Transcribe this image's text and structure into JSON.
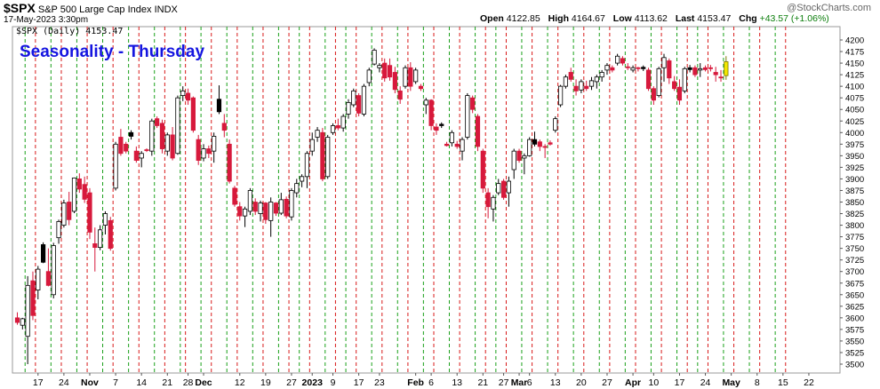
{
  "header": {
    "symbol": "$SPX",
    "description": "S&P 500 Large Cap Index",
    "exchange": "INDX",
    "date_time": "17-May-2023 3:30pm",
    "open_label": "Open",
    "open_value": "4122.85",
    "high_label": "High",
    "high_value": "4164.67",
    "low_label": "Low",
    "low_value": "4113.62",
    "last_label": "Last",
    "last_value": "4153.47",
    "chg_label": "Chg",
    "chg_value": "+43.57 (+1.06%)",
    "brand": "@StockCharts.com"
  },
  "chart_data": {
    "type": "candlestick",
    "title": "Seasonality - Thursday",
    "legend": "$SPX (Daily) 4153.47",
    "legend_placement": "top-left",
    "ylim": [
      3500,
      4200
    ],
    "y_axis_side": "right",
    "yticks": [
      3500,
      3525,
      3550,
      3575,
      3600,
      3625,
      3650,
      3675,
      3700,
      3725,
      3750,
      3775,
      3800,
      3825,
      3850,
      3875,
      3900,
      3925,
      3950,
      3975,
      4000,
      4025,
      4050,
      4075,
      4100,
      4125,
      4150,
      4175,
      4200
    ],
    "x_ticks": [
      {
        "label": "17",
        "i": 4
      },
      {
        "label": "24",
        "i": 9
      },
      {
        "label": "Nov",
        "i": 14,
        "bold": true
      },
      {
        "label": "7",
        "i": 19
      },
      {
        "label": "14",
        "i": 24
      },
      {
        "label": "21",
        "i": 29
      },
      {
        "label": "28",
        "i": 33
      },
      {
        "label": "Dec",
        "i": 36,
        "bold": true
      },
      {
        "label": "12",
        "i": 43
      },
      {
        "label": "19",
        "i": 48
      },
      {
        "label": "27",
        "i": 53
      },
      {
        "label": "2023",
        "i": 57,
        "bold": true
      },
      {
        "label": "9",
        "i": 61
      },
      {
        "label": "17",
        "i": 66
      },
      {
        "label": "23",
        "i": 70
      },
      {
        "label": "Feb",
        "i": 77,
        "bold": true
      },
      {
        "label": "6",
        "i": 80
      },
      {
        "label": "13",
        "i": 85
      },
      {
        "label": "21",
        "i": 90
      },
      {
        "label": "27",
        "i": 94
      },
      {
        "label": "Mar",
        "i": 97,
        "bold": true
      },
      {
        "label": "6",
        "i": 99
      },
      {
        "label": "13",
        "i": 104
      },
      {
        "label": "20",
        "i": 109
      },
      {
        "label": "27",
        "i": 114
      },
      {
        "label": "Apr",
        "i": 119,
        "bold": true
      },
      {
        "label": "10",
        "i": 123
      },
      {
        "label": "17",
        "i": 128
      },
      {
        "label": "24",
        "i": 133
      },
      {
        "label": "May",
        "i": 138,
        "bold": true
      },
      {
        "label": "8",
        "i": 143
      },
      {
        "label": "15",
        "i": 148
      },
      {
        "label": "22",
        "i": 153
      }
    ],
    "vertical_markers": {
      "green_dashed_index": [
        1,
        6,
        11,
        16,
        21,
        26,
        31,
        35,
        40,
        45,
        50,
        54,
        59,
        63,
        68,
        73,
        78,
        83,
        88,
        92,
        97,
        102,
        107,
        112,
        117,
        122,
        127,
        131,
        136,
        141,
        146
      ],
      "red_dashed_index": [
        3,
        8,
        13,
        18,
        23,
        28,
        32,
        37,
        42,
        47,
        52,
        56,
        61,
        65,
        70,
        75,
        80,
        85,
        90,
        94,
        99,
        104,
        109,
        114,
        119,
        124,
        129,
        133,
        138,
        143,
        148
      ]
    },
    "colors": {
      "up": "#ffffff",
      "down": "#d7193c",
      "up_dark": "#000000",
      "last": "#f2e600",
      "title": "#1515e0",
      "green_line": "#1aa01a",
      "red_line": "#d81a1a"
    },
    "candles": [
      {
        "o": 3600,
        "h": 3612,
        "l": 3585,
        "c": 3590,
        "d": "red"
      },
      {
        "o": 3584,
        "h": 3600,
        "l": 3575,
        "c": 3598,
        "d": "up"
      },
      {
        "o": 3560,
        "h": 3690,
        "l": 3500,
        "c": 3670,
        "d": "up"
      },
      {
        "o": 3680,
        "h": 3700,
        "l": 3595,
        "c": 3605,
        "d": "red"
      },
      {
        "o": 3660,
        "h": 3712,
        "l": 3640,
        "c": 3705,
        "d": "up"
      },
      {
        "o": 3720,
        "h": 3763,
        "l": 3718,
        "c": 3758,
        "d": "dark"
      },
      {
        "o": 3700,
        "h": 3750,
        "l": 3668,
        "c": 3670,
        "d": "red"
      },
      {
        "o": 3650,
        "h": 3762,
        "l": 3642,
        "c": 3756,
        "d": "up"
      },
      {
        "o": 3773,
        "h": 3812,
        "l": 3760,
        "c": 3808,
        "d": "up"
      },
      {
        "o": 3800,
        "h": 3855,
        "l": 3795,
        "c": 3848,
        "d": "up"
      },
      {
        "o": 3850,
        "h": 3872,
        "l": 3800,
        "c": 3812,
        "d": "red"
      },
      {
        "o": 3830,
        "h": 3903,
        "l": 3826,
        "c": 3902,
        "d": "up"
      },
      {
        "o": 3900,
        "h": 3912,
        "l": 3870,
        "c": 3878,
        "d": "red"
      },
      {
        "o": 3888,
        "h": 3905,
        "l": 3848,
        "c": 3856,
        "d": "red"
      },
      {
        "o": 3870,
        "h": 3880,
        "l": 3770,
        "c": 3785,
        "d": "red"
      },
      {
        "o": 3760,
        "h": 3795,
        "l": 3700,
        "c": 3752,
        "d": "red"
      },
      {
        "o": 3752,
        "h": 3800,
        "l": 3746,
        "c": 3790,
        "d": "up"
      },
      {
        "o": 3800,
        "h": 3830,
        "l": 3780,
        "c": 3825,
        "d": "up"
      },
      {
        "o": 3810,
        "h": 3818,
        "l": 3745,
        "c": 3750,
        "d": "red"
      },
      {
        "o": 3880,
        "h": 3980,
        "l": 3875,
        "c": 3975,
        "d": "up"
      },
      {
        "o": 3990,
        "h": 4008,
        "l": 3950,
        "c": 3955,
        "d": "red"
      },
      {
        "o": 3960,
        "h": 3980,
        "l": 3955,
        "c": 3975,
        "d": "red"
      },
      {
        "o": 3992,
        "h": 4005,
        "l": 3985,
        "c": 4000,
        "d": "dark"
      },
      {
        "o": 3960,
        "h": 3970,
        "l": 3935,
        "c": 3940,
        "d": "red"
      },
      {
        "o": 3945,
        "h": 3960,
        "l": 3925,
        "c": 3955,
        "d": "up"
      },
      {
        "o": 3963,
        "h": 3966,
        "l": 3958,
        "c": 3962,
        "d": "red"
      },
      {
        "o": 3960,
        "h": 4030,
        "l": 3950,
        "c": 4025,
        "d": "up"
      },
      {
        "o": 4030,
        "h": 4035,
        "l": 4010,
        "c": 4015,
        "d": "red"
      },
      {
        "o": 4020,
        "h": 4028,
        "l": 3955,
        "c": 3965,
        "d": "red"
      },
      {
        "o": 3960,
        "h": 4000,
        "l": 3950,
        "c": 3995,
        "d": "up"
      },
      {
        "o": 3995,
        "h": 4012,
        "l": 3940,
        "c": 3945,
        "d": "red"
      },
      {
        "o": 3955,
        "h": 4080,
        "l": 3952,
        "c": 4075,
        "d": "up"
      },
      {
        "o": 4080,
        "h": 4100,
        "l": 4068,
        "c": 4090,
        "d": "up"
      },
      {
        "o": 4085,
        "h": 4095,
        "l": 4060,
        "c": 4070,
        "d": "red"
      },
      {
        "o": 4075,
        "h": 4078,
        "l": 4000,
        "c": 4005,
        "d": "red"
      },
      {
        "o": 3985,
        "h": 3995,
        "l": 3930,
        "c": 3940,
        "d": "red"
      },
      {
        "o": 3945,
        "h": 3975,
        "l": 3938,
        "c": 3965,
        "d": "up"
      },
      {
        "o": 3965,
        "h": 3972,
        "l": 3945,
        "c": 3955,
        "d": "red"
      },
      {
        "o": 3960,
        "h": 4000,
        "l": 3935,
        "c": 3992,
        "d": "up"
      },
      {
        "o": 4045,
        "h": 4102,
        "l": 4040,
        "c": 4072,
        "d": "dark"
      },
      {
        "o": 4020,
        "h": 4040,
        "l": 3990,
        "c": 4005,
        "d": "red"
      },
      {
        "o": 3975,
        "h": 3985,
        "l": 3890,
        "c": 3895,
        "d": "red"
      },
      {
        "o": 3880,
        "h": 3885,
        "l": 3840,
        "c": 3845,
        "d": "red"
      },
      {
        "o": 3840,
        "h": 3850,
        "l": 3810,
        "c": 3820,
        "d": "red"
      },
      {
        "o": 3820,
        "h": 3840,
        "l": 3796,
        "c": 3835,
        "d": "up"
      },
      {
        "o": 3830,
        "h": 3880,
        "l": 3822,
        "c": 3875,
        "d": "up"
      },
      {
        "o": 3850,
        "h": 3858,
        "l": 3822,
        "c": 3830,
        "d": "red"
      },
      {
        "o": 3825,
        "h": 3853,
        "l": 3808,
        "c": 3848,
        "d": "up"
      },
      {
        "o": 3848,
        "h": 3850,
        "l": 3803,
        "c": 3812,
        "d": "red"
      },
      {
        "o": 3810,
        "h": 3860,
        "l": 3775,
        "c": 3850,
        "d": "up"
      },
      {
        "o": 3848,
        "h": 3850,
        "l": 3820,
        "c": 3826,
        "d": "red"
      },
      {
        "o": 3826,
        "h": 3870,
        "l": 3822,
        "c": 3855,
        "d": "up"
      },
      {
        "o": 3856,
        "h": 3862,
        "l": 3815,
        "c": 3820,
        "d": "red"
      },
      {
        "o": 3818,
        "h": 3880,
        "l": 3810,
        "c": 3875,
        "d": "up"
      },
      {
        "o": 3870,
        "h": 3900,
        "l": 3860,
        "c": 3890,
        "d": "up"
      },
      {
        "o": 3895,
        "h": 3910,
        "l": 3882,
        "c": 3905,
        "d": "up"
      },
      {
        "o": 3905,
        "h": 3960,
        "l": 3880,
        "c": 3955,
        "d": "up"
      },
      {
        "o": 3960,
        "h": 4000,
        "l": 3950,
        "c": 3985,
        "d": "up"
      },
      {
        "o": 3990,
        "h": 4012,
        "l": 3980,
        "c": 4005,
        "d": "up"
      },
      {
        "o": 4000,
        "h": 4010,
        "l": 3895,
        "c": 3900,
        "d": "red"
      },
      {
        "o": 3905,
        "h": 3995,
        "l": 3900,
        "c": 3990,
        "d": "up"
      },
      {
        "o": 4000,
        "h": 4020,
        "l": 3995,
        "c": 4015,
        "d": "up"
      },
      {
        "o": 4015,
        "h": 4030,
        "l": 4005,
        "c": 4010,
        "d": "red"
      },
      {
        "o": 4010,
        "h": 4040,
        "l": 4002,
        "c": 4035,
        "d": "up"
      },
      {
        "o": 4040,
        "h": 4072,
        "l": 4030,
        "c": 4065,
        "d": "up"
      },
      {
        "o": 4060,
        "h": 4095,
        "l": 4055,
        "c": 4090,
        "d": "up"
      },
      {
        "o": 4080,
        "h": 4085,
        "l": 4035,
        "c": 4042,
        "d": "red"
      },
      {
        "o": 4040,
        "h": 4105,
        "l": 4035,
        "c": 4100,
        "d": "up"
      },
      {
        "o": 4108,
        "h": 4140,
        "l": 4100,
        "c": 4135,
        "d": "up"
      },
      {
        "o": 4148,
        "h": 4182,
        "l": 4145,
        "c": 4178,
        "d": "up"
      },
      {
        "o": 4140,
        "h": 4150,
        "l": 4130,
        "c": 4145,
        "d": "up"
      },
      {
        "o": 4150,
        "h": 4160,
        "l": 4110,
        "c": 4118,
        "d": "red"
      },
      {
        "o": 4145,
        "h": 4160,
        "l": 4112,
        "c": 4120,
        "d": "red"
      },
      {
        "o": 4130,
        "h": 4142,
        "l": 4085,
        "c": 4093,
        "d": "red"
      },
      {
        "o": 4090,
        "h": 4100,
        "l": 4062,
        "c": 4072,
        "d": "red"
      },
      {
        "o": 4100,
        "h": 4145,
        "l": 4095,
        "c": 4140,
        "d": "up"
      },
      {
        "o": 4140,
        "h": 4152,
        "l": 4090,
        "c": 4100,
        "d": "red"
      },
      {
        "o": 4110,
        "h": 4140,
        "l": 4105,
        "c": 4135,
        "d": "up"
      },
      {
        "o": 4100,
        "h": 4105,
        "l": 4090,
        "c": 4095,
        "d": "red"
      },
      {
        "o": 4060,
        "h": 4075,
        "l": 4040,
        "c": 4070,
        "d": "up"
      },
      {
        "o": 4070,
        "h": 4072,
        "l": 4005,
        "c": 4015,
        "d": "red"
      },
      {
        "o": 4012,
        "h": 4020,
        "l": 3995,
        "c": 4005,
        "d": "red"
      },
      {
        "o": 4015,
        "h": 4022,
        "l": 4010,
        "c": 4018,
        "d": "dark"
      },
      {
        "o": 3975,
        "h": 3980,
        "l": 3970,
        "c": 3972,
        "d": "red"
      },
      {
        "o": 3978,
        "h": 4005,
        "l": 3970,
        "c": 4000,
        "d": "up"
      },
      {
        "o": 3975,
        "h": 3982,
        "l": 3965,
        "c": 3970,
        "d": "red"
      },
      {
        "o": 3960,
        "h": 3990,
        "l": 3940,
        "c": 3985,
        "d": "up"
      },
      {
        "o": 3990,
        "h": 4085,
        "l": 3985,
        "c": 4080,
        "d": "up"
      },
      {
        "o": 4050,
        "h": 4080,
        "l": 4042,
        "c": 4075,
        "d": "red"
      },
      {
        "o": 4035,
        "h": 4040,
        "l": 3960,
        "c": 3970,
        "d": "red"
      },
      {
        "o": 3960,
        "h": 3965,
        "l": 3870,
        "c": 3880,
        "d": "red"
      },
      {
        "o": 3870,
        "h": 3880,
        "l": 3815,
        "c": 3840,
        "d": "red"
      },
      {
        "o": 3835,
        "h": 3865,
        "l": 3808,
        "c": 3860,
        "d": "up"
      },
      {
        "o": 3870,
        "h": 3900,
        "l": 3865,
        "c": 3890,
        "d": "up"
      },
      {
        "o": 3895,
        "h": 3900,
        "l": 3855,
        "c": 3860,
        "d": "red"
      },
      {
        "o": 3870,
        "h": 3905,
        "l": 3840,
        "c": 3895,
        "d": "up"
      },
      {
        "o": 3920,
        "h": 3965,
        "l": 3900,
        "c": 3960,
        "d": "up"
      },
      {
        "o": 3960,
        "h": 3965,
        "l": 3935,
        "c": 3940,
        "d": "red"
      },
      {
        "o": 3945,
        "h": 3955,
        "l": 3910,
        "c": 3950,
        "d": "up"
      },
      {
        "o": 3950,
        "h": 3990,
        "l": 3948,
        "c": 3985,
        "d": "up"
      },
      {
        "o": 3985,
        "h": 4002,
        "l": 3970,
        "c": 3975,
        "d": "dark"
      },
      {
        "o": 3970,
        "h": 3985,
        "l": 3960,
        "c": 3980,
        "d": "red"
      },
      {
        "o": 3968,
        "h": 3975,
        "l": 3945,
        "c": 3970,
        "d": "red"
      },
      {
        "o": 3978,
        "h": 3983,
        "l": 3972,
        "c": 3975,
        "d": "red"
      },
      {
        "o": 4005,
        "h": 4035,
        "l": 4000,
        "c": 4030,
        "d": "up"
      },
      {
        "o": 4060,
        "h": 4103,
        "l": 4055,
        "c": 4100,
        "d": "up"
      },
      {
        "o": 4100,
        "h": 4125,
        "l": 4095,
        "c": 4120,
        "d": "up"
      },
      {
        "o": 4130,
        "h": 4140,
        "l": 4110,
        "c": 4115,
        "d": "red"
      },
      {
        "o": 4100,
        "h": 4115,
        "l": 4080,
        "c": 4090,
        "d": "red"
      },
      {
        "o": 4092,
        "h": 4115,
        "l": 4085,
        "c": 4110,
        "d": "up"
      },
      {
        "o": 4095,
        "h": 4112,
        "l": 4090,
        "c": 4100,
        "d": "red"
      },
      {
        "o": 4100,
        "h": 4120,
        "l": 4092,
        "c": 4112,
        "d": "up"
      },
      {
        "o": 4110,
        "h": 4125,
        "l": 4095,
        "c": 4120,
        "d": "up"
      },
      {
        "o": 4120,
        "h": 4135,
        "l": 4110,
        "c": 4130,
        "d": "up"
      },
      {
        "o": 4135,
        "h": 4150,
        "l": 4125,
        "c": 4145,
        "d": "up"
      },
      {
        "o": 4140,
        "h": 4145,
        "l": 4130,
        "c": 4135,
        "d": "red"
      },
      {
        "o": 4150,
        "h": 4170,
        "l": 4145,
        "c": 4165,
        "d": "up"
      },
      {
        "o": 4160,
        "h": 4165,
        "l": 4145,
        "c": 4150,
        "d": "red"
      },
      {
        "o": 4142,
        "h": 4150,
        "l": 4135,
        "c": 4140,
        "d": "red"
      },
      {
        "o": 4135,
        "h": 4145,
        "l": 4130,
        "c": 4140,
        "d": "up"
      },
      {
        "o": 4140,
        "h": 4142,
        "l": 4132,
        "c": 4138,
        "d": "red"
      },
      {
        "o": 4138,
        "h": 4145,
        "l": 4133,
        "c": 4141,
        "d": "dark"
      },
      {
        "o": 4135,
        "h": 4140,
        "l": 4090,
        "c": 4095,
        "d": "red"
      },
      {
        "o": 4095,
        "h": 4100,
        "l": 4060,
        "c": 4070,
        "d": "red"
      },
      {
        "o": 4080,
        "h": 4142,
        "l": 4076,
        "c": 4138,
        "d": "up"
      },
      {
        "o": 4162,
        "h": 4170,
        "l": 4110,
        "c": 4140,
        "d": "up"
      },
      {
        "o": 4155,
        "h": 4160,
        "l": 4105,
        "c": 4118,
        "d": "red"
      },
      {
        "o": 4110,
        "h": 4122,
        "l": 4090,
        "c": 4095,
        "d": "red"
      },
      {
        "o": 4098,
        "h": 4115,
        "l": 4060,
        "c": 4070,
        "d": "red"
      },
      {
        "o": 4090,
        "h": 4142,
        "l": 4085,
        "c": 4138,
        "d": "up"
      },
      {
        "o": 4136,
        "h": 4146,
        "l": 4130,
        "c": 4140,
        "d": "dark"
      },
      {
        "o": 4140,
        "h": 4145,
        "l": 4120,
        "c": 4125,
        "d": "red"
      },
      {
        "o": 4135,
        "h": 4150,
        "l": 4120,
        "c": 4138,
        "d": "up"
      },
      {
        "o": 4140,
        "h": 4145,
        "l": 4132,
        "c": 4136,
        "d": "red"
      },
      {
        "o": 4140,
        "h": 4146,
        "l": 4132,
        "c": 4138,
        "d": "red"
      },
      {
        "o": 4130,
        "h": 4142,
        "l": 4110,
        "c": 4125,
        "d": "red"
      },
      {
        "o": 4120,
        "h": 4135,
        "l": 4110,
        "c": 4120,
        "d": "red"
      },
      {
        "o": 4123,
        "h": 4165,
        "l": 4114,
        "c": 4153,
        "d": "last"
      }
    ]
  }
}
